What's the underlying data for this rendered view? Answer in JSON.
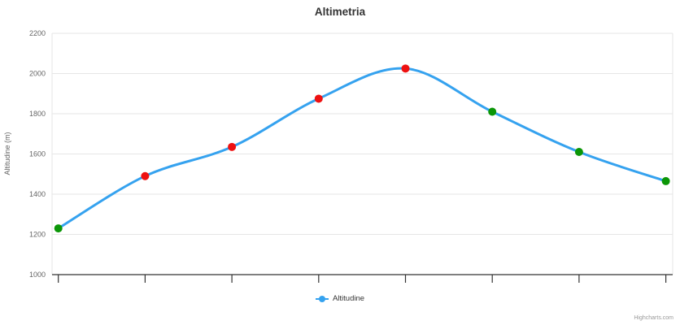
{
  "chart_data": {
    "type": "line",
    "line_style": "spline",
    "title": "Altimetria",
    "xlabel": "",
    "ylabel": "Altitudine (m)",
    "ylim": [
      1000,
      2200
    ],
    "yticks": [
      1000,
      1200,
      1400,
      1600,
      1800,
      2000,
      2200
    ],
    "x_tick_labels_visible": false,
    "x_point_count": 8,
    "grid": "horizontal",
    "legend_position": "bottom-center",
    "series": [
      {
        "name": "Altitudine",
        "color": "#35a2ef",
        "marker_shape": "circle",
        "values": [
          1230,
          1490,
          1635,
          1875,
          2025,
          1810,
          1610,
          1465
        ],
        "point_colors": [
          "#0b9607",
          "#ee1111",
          "#ee1111",
          "#ee1111",
          "#ee1111",
          "#0b9607",
          "#0b9607",
          "#0b9607"
        ]
      }
    ]
  },
  "credits": "Highcharts.com",
  "colors": {
    "background": "#ffffff",
    "title_text": "#333333",
    "axis_label_text": "#666666",
    "grid_line": "#e6e6e6",
    "axis_line": "#333333",
    "tick_mark": "#333333",
    "legend_text": "#333333",
    "credits_text": "#999999"
  }
}
